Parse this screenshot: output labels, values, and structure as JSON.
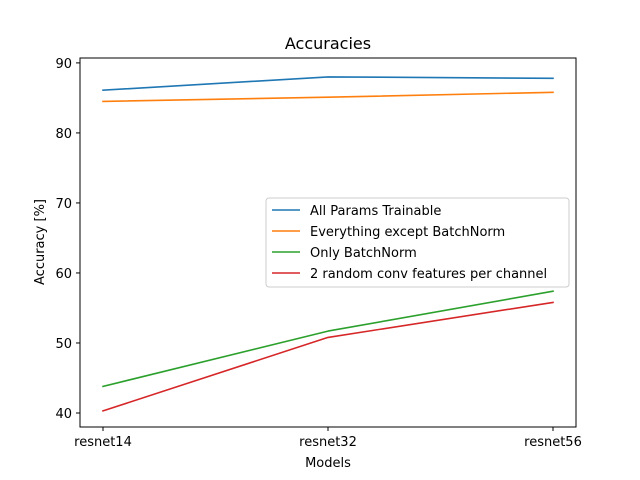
{
  "chart_data": {
    "type": "line",
    "title": "Accuracies",
    "xlabel": "Models",
    "ylabel": "Accuracy [%]",
    "categories": [
      "resnet14",
      "resnet32",
      "resnet56"
    ],
    "ylim": [
      38,
      90.7
    ],
    "yticks": [
      40,
      50,
      60,
      70,
      80,
      90
    ],
    "grid": false,
    "legend_position": "center-right",
    "series": [
      {
        "name": "All Params Trainable",
        "color": "#1f77b4",
        "values": [
          86.1,
          88.0,
          87.8
        ]
      },
      {
        "name": "Everything except BatchNorm",
        "color": "#ff7f0e",
        "values": [
          84.5,
          85.1,
          85.8
        ]
      },
      {
        "name": "Only BatchNorm",
        "color": "#2ca02c",
        "values": [
          43.8,
          51.7,
          57.4
        ]
      },
      {
        "name": "2 random conv features per channel",
        "color": "#d62728",
        "values": [
          40.3,
          50.8,
          55.8
        ]
      }
    ]
  }
}
